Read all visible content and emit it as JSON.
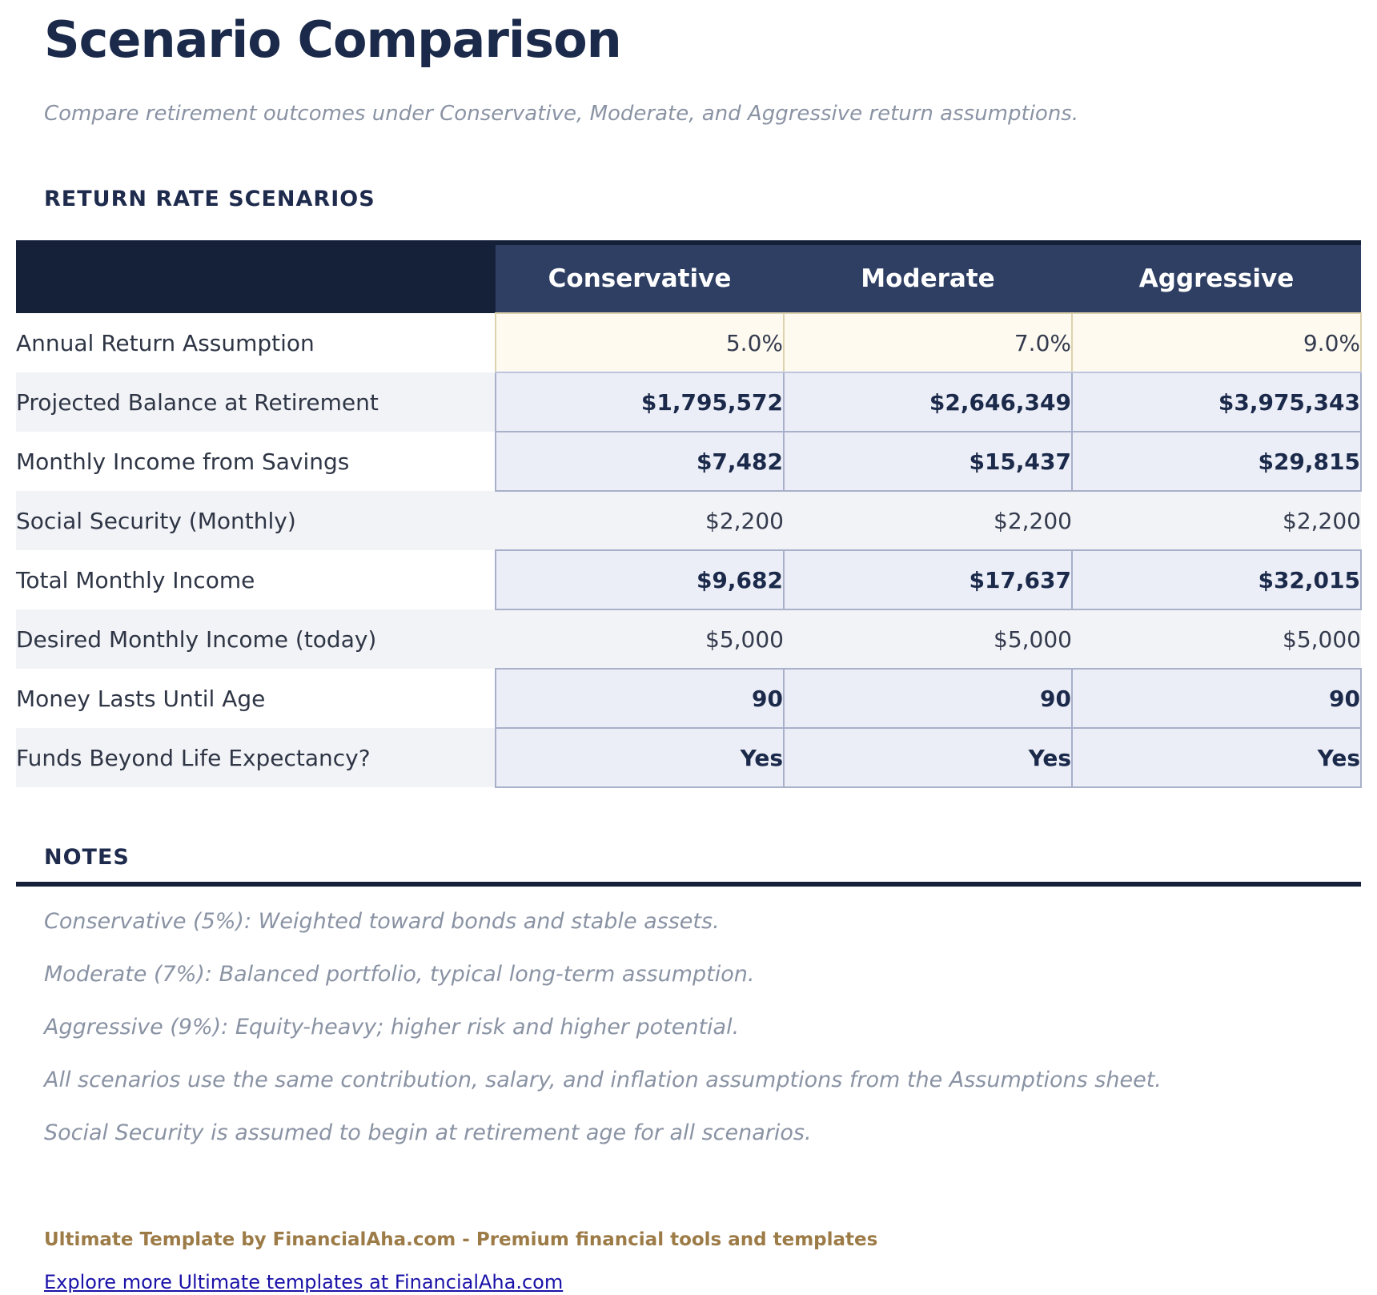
{
  "page": {
    "title": "Scenario Comparison",
    "subtitle": "Compare retirement outcomes under Conservative, Moderate, and Aggressive return assumptions."
  },
  "scenarios_section": {
    "heading": "RETURN RATE SCENARIOS",
    "table": {
      "corner_label": "",
      "columns": [
        "Conservative",
        "Moderate",
        "Aggressive"
      ],
      "rows": [
        {
          "label": "Annual Return Assumption",
          "values": [
            "5.0%",
            "7.0%",
            "9.0%"
          ],
          "style": "input"
        },
        {
          "label": "Projected Balance at Retirement",
          "values": [
            "$1,795,572",
            "$2,646,349",
            "$3,975,343"
          ],
          "style": "output"
        },
        {
          "label": "Monthly Income from Savings",
          "values": [
            "$7,482",
            "$15,437",
            "$29,815"
          ],
          "style": "output"
        },
        {
          "label": "Social Security (Monthly)",
          "values": [
            "$2,200",
            "$2,200",
            "$2,200"
          ],
          "style": "plain"
        },
        {
          "label": "Total Monthly Income",
          "values": [
            "$9,682",
            "$17,637",
            "$32,015"
          ],
          "style": "output"
        },
        {
          "label": "Desired Monthly Income (today)",
          "values": [
            "$5,000",
            "$5,000",
            "$5,000"
          ],
          "style": "plain"
        },
        {
          "label": "Money Lasts Until Age",
          "values": [
            "90",
            "90",
            "90"
          ],
          "style": "output"
        },
        {
          "label": "Funds Beyond Life Expectancy?",
          "values": [
            "Yes",
            "Yes",
            "Yes"
          ],
          "style": "output"
        }
      ]
    }
  },
  "notes_section": {
    "heading": "NOTES",
    "items": [
      "Conservative (5%): Weighted toward bonds and stable assets.",
      "Moderate (7%): Balanced portfolio, typical long-term assumption.",
      "Aggressive (9%): Equity-heavy; higher risk and higher potential.",
      "All scenarios use the same contribution, salary, and inflation assumptions from the Assumptions sheet.",
      "Social Security is assumed to begin at retirement age for all scenarios."
    ]
  },
  "footer": {
    "brand_line": "Ultimate Template by FinancialAha.com - Premium financial tools and templates",
    "link_text": "Explore more Ultimate templates at FinancialAha.com"
  },
  "colors": {
    "navy_dark": "#152039",
    "navy_medium": "#2E3F63",
    "input_bg": "#FEFAF0",
    "input_border": "#DCD3AE",
    "output_bg": "#ECEEF7",
    "output_border": "#A9B0C9",
    "stripe_gray": "#F2F3F6",
    "text_dark": "#1B2A4A",
    "text_muted": "#8A93A4",
    "brand_gold": "#9C7B47",
    "link_blue": "#1A11A8"
  }
}
